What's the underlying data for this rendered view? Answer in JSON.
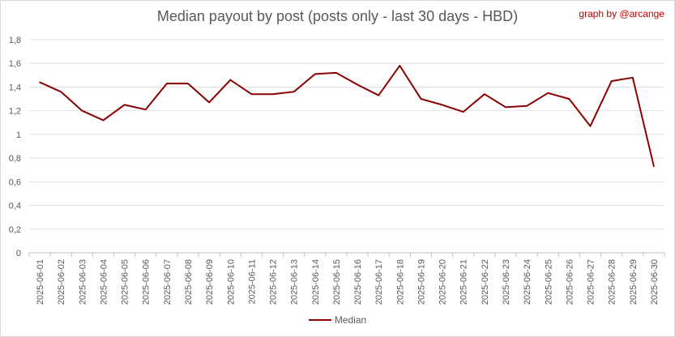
{
  "chart_data": {
    "type": "line",
    "title": "Median payout by post (posts only - last 30 days - HBD)",
    "credit": "graph by @arcange",
    "xlabel": "",
    "ylabel": "",
    "ylim": [
      0,
      1.8
    ],
    "ytick_labels": [
      "0",
      "0,2",
      "0,4",
      "0,6",
      "0,8",
      "1",
      "1,2",
      "1,4",
      "1,6",
      "1,8"
    ],
    "grid": "horizontal",
    "legend_position": "bottom",
    "categories": [
      "2025-06-01",
      "2025-06-02",
      "2025-06-03",
      "2025-06-04",
      "2025-06-05",
      "2025-06-06",
      "2025-06-07",
      "2025-06-08",
      "2025-06-09",
      "2025-06-10",
      "2025-06-11",
      "2025-06-12",
      "2025-06-13",
      "2025-06-14",
      "2025-06-15",
      "2025-06-16",
      "2025-06-17",
      "2025-06-18",
      "2025-06-19",
      "2025-06-20",
      "2025-06-21",
      "2025-06-22",
      "2025-06-23",
      "2025-06-24",
      "2025-06-25",
      "2025-06-26",
      "2025-06-27",
      "2025-06-28",
      "2025-06-29",
      "2025-06-30"
    ],
    "series": [
      {
        "name": "Median",
        "color": "#8b0000",
        "values": [
          1.44,
          1.36,
          1.2,
          1.12,
          1.25,
          1.21,
          1.43,
          1.43,
          1.27,
          1.46,
          1.34,
          1.34,
          1.36,
          1.51,
          1.52,
          1.42,
          1.33,
          1.58,
          1.3,
          1.25,
          1.19,
          1.34,
          1.23,
          1.24,
          1.35,
          1.3,
          1.07,
          1.45,
          1.48,
          0.73
        ]
      }
    ]
  }
}
